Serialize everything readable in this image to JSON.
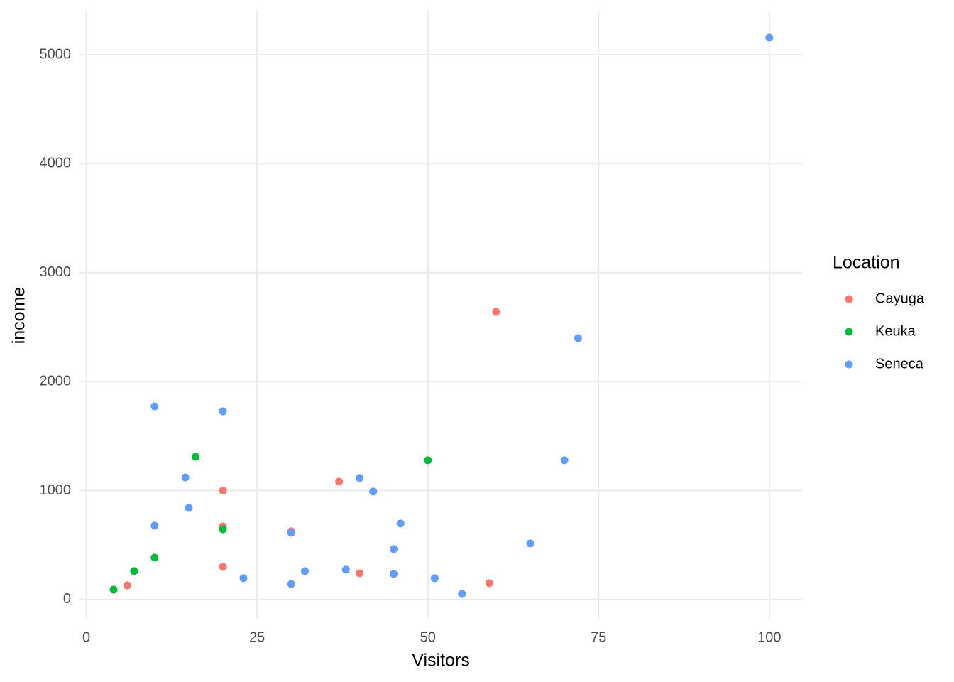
{
  "chart_data": {
    "type": "scatter",
    "x_label": "Visitors",
    "y_label": "income",
    "legend_title": "Location",
    "legend_position": "right",
    "grid": true,
    "xlim": [
      -1,
      104.8
    ],
    "ylim": [
      -183,
      5404
    ],
    "xticks": [
      0,
      25,
      50,
      75,
      100
    ],
    "yticks": [
      0,
      1000,
      2000,
      3000,
      4000,
      5000
    ],
    "series": [
      {
        "name": "Cayuga",
        "color": "#F8766D",
        "x": [
          60,
          6,
          20,
          20,
          20,
          30,
          37,
          40,
          59
        ],
        "values": [
          2640,
          130,
          1000,
          671,
          300,
          626,
          1082,
          241,
          150
        ]
      },
      {
        "name": "Keuka",
        "color": "#00BA38",
        "x": [
          4,
          7,
          10,
          16,
          20,
          50
        ],
        "values": [
          91,
          261,
          385,
          1310,
          645,
          1278
        ]
      },
      {
        "name": "Seneca",
        "color": "#619CFF",
        "x": [
          100,
          72,
          10,
          20,
          14.5,
          15,
          10,
          23,
          30,
          30,
          32,
          38,
          40,
          42,
          45,
          45,
          46,
          51,
          55,
          65,
          70
        ],
        "values": [
          5156,
          2399,
          1773,
          1727,
          1121,
          841,
          678,
          196,
          613,
          143,
          261,
          274,
          1115,
          991,
          463,
          235,
          698,
          196,
          52,
          515,
          1278
        ]
      }
    ]
  }
}
